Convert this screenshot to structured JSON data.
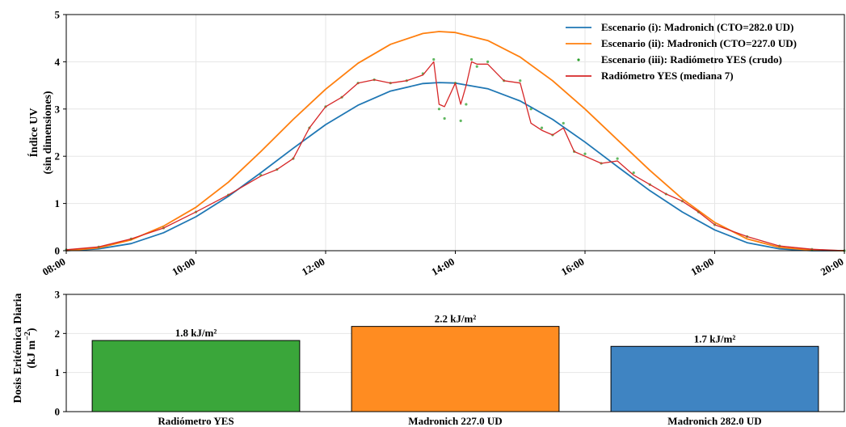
{
  "chart_data": [
    {
      "type": "line",
      "ylabel_line1": "Índice UV",
      "ylabel_line2": "(sin dimensiones)",
      "xlabel": "",
      "ylim": [
        0,
        5
      ],
      "y_ticks": [
        "0",
        "1",
        "2",
        "3",
        "4",
        "5"
      ],
      "x_range": [
        "08:00",
        "20:00"
      ],
      "x_ticks": [
        "08:00",
        "10:00",
        "12:00",
        "14:00",
        "16:00",
        "18:00",
        "20:00"
      ],
      "grid": true,
      "legend_position": "top-right",
      "legend": [
        "Escenario (i): Madronich (CTO=282.0 UD)",
        "Escenario (ii): Madronich (CTO=227.0 UD)",
        "Escenario (iii): Radiómetro YES (crudo)",
        "Radiómetro YES (mediana 7)"
      ],
      "series": [
        {
          "name": "Escenario (i): Madronich (CTO=282.0 UD)",
          "color": "#1f77b4",
          "style": "line",
          "x": [
            "08:00",
            "08:30",
            "09:00",
            "09:30",
            "10:00",
            "10:30",
            "11:00",
            "11:30",
            "12:00",
            "12:30",
            "13:00",
            "13:30",
            "13:45",
            "14:00",
            "14:30",
            "15:00",
            "15:30",
            "16:00",
            "16:30",
            "17:00",
            "17:30",
            "18:00",
            "18:30",
            "19:00",
            "19:30",
            "20:00"
          ],
          "y": [
            0.0,
            0.04,
            0.15,
            0.38,
            0.72,
            1.15,
            1.65,
            2.17,
            2.67,
            3.08,
            3.38,
            3.54,
            3.56,
            3.55,
            3.43,
            3.17,
            2.78,
            2.3,
            1.78,
            1.27,
            0.82,
            0.44,
            0.17,
            0.04,
            0.0,
            0.0
          ]
        },
        {
          "name": "Escenario (ii): Madronich (CTO=227.0 UD)",
          "color": "#ff7f0e",
          "style": "line",
          "x": [
            "08:00",
            "08:30",
            "09:00",
            "09:30",
            "10:00",
            "10:30",
            "11:00",
            "11:30",
            "12:00",
            "12:30",
            "13:00",
            "13:30",
            "13:45",
            "14:00",
            "14:30",
            "15:00",
            "15:30",
            "16:00",
            "16:30",
            "17:00",
            "17:30",
            "18:00",
            "18:30",
            "19:00",
            "19:30",
            "20:00"
          ],
          "y": [
            0.0,
            0.06,
            0.23,
            0.52,
            0.92,
            1.45,
            2.1,
            2.78,
            3.42,
            3.97,
            4.37,
            4.6,
            4.64,
            4.62,
            4.45,
            4.1,
            3.6,
            3.0,
            2.35,
            1.7,
            1.1,
            0.6,
            0.25,
            0.07,
            0.01,
            0.0
          ]
        },
        {
          "name": "Escenario (iii): Radiómetro YES (crudo)",
          "color": "#2ca02c",
          "style": "points",
          "x": [
            "08:00",
            "08:30",
            "09:00",
            "09:30",
            "10:00",
            "10:30",
            "11:00",
            "11:15",
            "11:30",
            "11:45",
            "12:00",
            "12:15",
            "12:30",
            "12:45",
            "13:00",
            "13:15",
            "13:30",
            "13:40",
            "13:45",
            "13:50",
            "14:00",
            "14:05",
            "14:10",
            "14:15",
            "14:20",
            "14:30",
            "14:45",
            "15:00",
            "15:10",
            "15:20",
            "15:30",
            "15:40",
            "15:50",
            "16:00",
            "16:15",
            "16:30",
            "16:45",
            "17:00",
            "17:15",
            "17:30",
            "17:45",
            "18:00",
            "18:30",
            "19:00",
            "19:30",
            "20:00"
          ],
          "y": [
            0.02,
            0.08,
            0.25,
            0.48,
            0.82,
            1.18,
            1.6,
            1.72,
            1.95,
            2.6,
            3.05,
            3.25,
            3.55,
            3.62,
            3.55,
            3.6,
            3.75,
            4.05,
            3.0,
            2.8,
            3.55,
            2.75,
            3.1,
            4.05,
            3.9,
            4.0,
            3.6,
            3.6,
            3.0,
            2.6,
            2.45,
            2.7,
            2.1,
            2.05,
            1.85,
            1.95,
            1.65,
            1.4,
            1.2,
            1.05,
            0.82,
            0.55,
            0.3,
            0.1,
            0.03,
            0.0
          ]
        },
        {
          "name": "Radiómetro YES (mediana 7)",
          "color": "#d62728",
          "style": "line",
          "x": [
            "08:00",
            "08:30",
            "09:00",
            "09:30",
            "10:00",
            "10:30",
            "11:00",
            "11:15",
            "11:30",
            "11:45",
            "12:00",
            "12:15",
            "12:30",
            "12:45",
            "13:00",
            "13:15",
            "13:30",
            "13:40",
            "13:45",
            "13:50",
            "14:00",
            "14:05",
            "14:10",
            "14:15",
            "14:20",
            "14:30",
            "14:45",
            "15:00",
            "15:10",
            "15:20",
            "15:30",
            "15:40",
            "15:50",
            "16:00",
            "16:15",
            "16:30",
            "16:45",
            "17:00",
            "17:15",
            "17:30",
            "17:45",
            "18:00",
            "18:30",
            "19:00",
            "19:30",
            "20:00"
          ],
          "y": [
            0.02,
            0.08,
            0.25,
            0.48,
            0.82,
            1.18,
            1.58,
            1.72,
            1.95,
            2.6,
            3.05,
            3.25,
            3.55,
            3.62,
            3.55,
            3.6,
            3.72,
            4.0,
            3.1,
            3.05,
            3.55,
            3.1,
            3.5,
            4.0,
            3.95,
            3.95,
            3.6,
            3.55,
            2.7,
            2.55,
            2.45,
            2.6,
            2.1,
            2.0,
            1.85,
            1.9,
            1.6,
            1.4,
            1.2,
            1.05,
            0.82,
            0.55,
            0.3,
            0.1,
            0.03,
            0.0
          ]
        }
      ]
    },
    {
      "type": "bar",
      "ylabel_line1": "Dosis Eritémica Diaria",
      "ylabel_line2": "(kJ m",
      "ylabel_exponent": "−2",
      "ylabel_close": ")",
      "ylim": [
        0,
        3
      ],
      "y_ticks": [
        "0",
        "1",
        "2",
        "3"
      ],
      "categories": [
        "Radiómetro YES",
        "Madronich 227.0 UD",
        "Madronich 282.0 UD"
      ],
      "values": [
        1.82,
        2.18,
        1.67
      ],
      "data_labels": [
        "1.8 kJ/m²",
        "2.2 kJ/m²",
        "1.7 kJ/m²"
      ],
      "colors": [
        "#3aa63a",
        "#ff8c21",
        "#3f84c2"
      ]
    }
  ]
}
